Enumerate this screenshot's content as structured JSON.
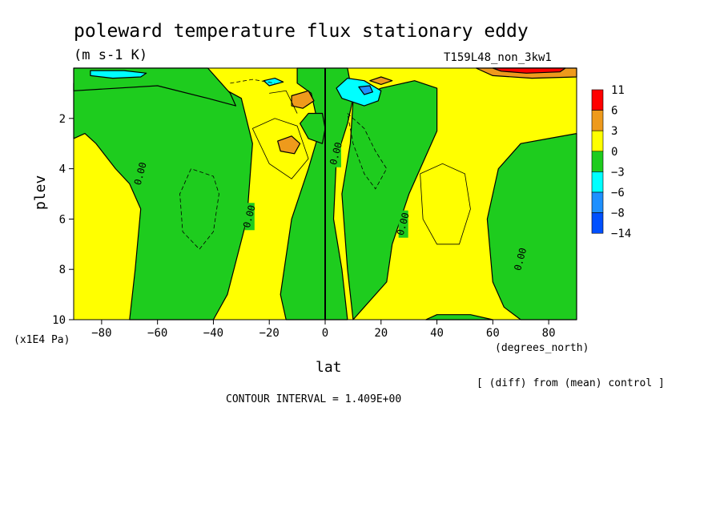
{
  "chart_data": {
    "type": "heatmap",
    "title": "poleward temperature flux stationary eddy",
    "units": "(m s-1 K)",
    "run_label": "T159L48_non_3kw1",
    "subtitle": "[ (diff) from (mean) control ]",
    "contour_interval_text": "CONTOUR INTERVAL = 1.409E+00",
    "xlabel": "lat",
    "x_units": "(degrees_north)",
    "ylabel": "plev",
    "y_units": "(x1E4 Pa)",
    "xlim": [
      -90,
      90
    ],
    "ylim": [
      10,
      0
    ],
    "x_ticks": [
      -80,
      -60,
      -40,
      -20,
      0,
      20,
      40,
      60,
      80
    ],
    "y_ticks": [
      2,
      4,
      6,
      8,
      10
    ],
    "colorbar": {
      "levels": [
        "11",
        "6",
        "3",
        "0",
        "-3",
        "-6",
        "-8",
        "-14"
      ],
      "colors": [
        "#ff0000",
        "#ee9a1c",
        "#ffff00",
        "#1ecc1e",
        "#00ffff",
        "#1e90ff",
        "#0050ff"
      ]
    },
    "contour_labels": [
      {
        "text": "0.00",
        "lat": -66,
        "plev": 4.2
      },
      {
        "text": "0.00",
        "lat": -27,
        "plev": 5.9
      },
      {
        "text": "0.00",
        "lat": 4,
        "plev": 3.4
      },
      {
        "text": "0.00",
        "lat": 28,
        "plev": 6.2
      },
      {
        "text": "0.00",
        "lat": 70,
        "plev": 7.6
      }
    ],
    "regions": [
      {
        "name": "green-sh-band",
        "level": "-3..0",
        "polygon": [
          [
            -90,
            2.8
          ],
          [
            -86,
            2.6
          ],
          [
            -82,
            3.0
          ],
          [
            -75,
            4.0
          ],
          [
            -70,
            4.6
          ],
          [
            -66,
            5.6
          ],
          [
            -68,
            8
          ],
          [
            -70,
            10
          ],
          [
            -40,
            10
          ],
          [
            -35,
            9
          ],
          [
            -28,
            6
          ],
          [
            -26,
            3
          ],
          [
            -30,
            1.2
          ],
          [
            -40,
            0.6
          ],
          [
            -60,
            0.5
          ],
          [
            -90,
            0.6
          ]
        ]
      },
      {
        "name": "green-top-left",
        "level": "-3..0",
        "polygon": [
          [
            -90,
            0
          ],
          [
            -42,
            0
          ],
          [
            -38,
            0.5
          ],
          [
            -34,
            1.0
          ],
          [
            -32,
            1.5
          ],
          [
            -42,
            1.2
          ],
          [
            -60,
            0.7
          ],
          [
            -90,
            0.9
          ]
        ]
      },
      {
        "name": "green-equator",
        "level": "-3..0",
        "polygon": [
          [
            -10,
            0
          ],
          [
            8,
            0
          ],
          [
            10,
            1.2
          ],
          [
            8,
            2.2
          ],
          [
            4,
            3.6
          ],
          [
            3,
            6
          ],
          [
            6,
            8
          ],
          [
            8,
            10
          ],
          [
            -14,
            10
          ],
          [
            -16,
            9
          ],
          [
            -12,
            6
          ],
          [
            -6,
            4
          ],
          [
            -2,
            2.5
          ],
          [
            -5,
            1
          ],
          [
            -10,
            0.6
          ]
        ]
      },
      {
        "name": "green-nh-mid",
        "level": "-3..0",
        "polygon": [
          [
            10,
            1.3
          ],
          [
            20,
            0.8
          ],
          [
            32,
            0.5
          ],
          [
            40,
            0.8
          ],
          [
            40,
            2.5
          ],
          [
            30,
            5
          ],
          [
            24,
            7
          ],
          [
            22,
            8.5
          ],
          [
            14,
            9.5
          ],
          [
            10,
            10
          ],
          [
            8,
            8
          ],
          [
            6,
            5
          ],
          [
            9,
            3
          ]
        ]
      },
      {
        "name": "green-nh-high",
        "level": "-3..0",
        "polygon": [
          [
            58,
            6
          ],
          [
            62,
            4
          ],
          [
            70,
            3.0
          ],
          [
            80,
            2.8
          ],
          [
            90,
            2.6
          ],
          [
            90,
            10
          ],
          [
            70,
            10
          ],
          [
            64,
            9.5
          ],
          [
            60,
            8.5
          ]
        ]
      },
      {
        "name": "green-bottom-mid",
        "level": "-3..0",
        "polygon": [
          [
            36,
            10
          ],
          [
            40,
            9.8
          ],
          [
            52,
            9.8
          ],
          [
            60,
            10
          ]
        ]
      },
      {
        "name": "green-small-blob",
        "level": "-3..0",
        "polygon": [
          [
            -9,
            2.2
          ],
          [
            -6,
            1.8
          ],
          [
            -1,
            1.8
          ],
          [
            0,
            2.4
          ],
          [
            -1,
            3.0
          ],
          [
            -6,
            2.8
          ]
        ]
      },
      {
        "name": "cyan-top-left",
        "level": "-6..-3",
        "polygon": [
          [
            -84,
            0.1
          ],
          [
            -72,
            0.1
          ],
          [
            -64,
            0.2
          ],
          [
            -66,
            0.35
          ],
          [
            -76,
            0.4
          ],
          [
            -84,
            0.3
          ]
        ]
      },
      {
        "name": "cyan-top-center",
        "level": "-6..-3",
        "polygon": [
          [
            -22,
            0.5
          ],
          [
            -18,
            0.4
          ],
          [
            -15,
            0.55
          ],
          [
            -20,
            0.7
          ]
        ]
      },
      {
        "name": "cyan-nh-upper",
        "level": "-6..-3",
        "polygon": [
          [
            4,
            0.8
          ],
          [
            8,
            0.4
          ],
          [
            14,
            0.5
          ],
          [
            20,
            0.9
          ],
          [
            19,
            1.3
          ],
          [
            14,
            1.5
          ],
          [
            6,
            1.2
          ]
        ]
      },
      {
        "name": "blue-nh-upper",
        "level": "-8..-6",
        "polygon": [
          [
            12,
            0.75
          ],
          [
            16,
            0.7
          ],
          [
            17,
            0.95
          ],
          [
            14,
            1.05
          ]
        ]
      },
      {
        "name": "orange-top-right",
        "level": "3..6",
        "polygon": [
          [
            54,
            0
          ],
          [
            90,
            0
          ],
          [
            90,
            0.35
          ],
          [
            74,
            0.4
          ],
          [
            60,
            0.3
          ]
        ]
      },
      {
        "name": "red-top-right",
        "level": "6..11",
        "polygon": [
          [
            60,
            0
          ],
          [
            86,
            0
          ],
          [
            84,
            0.15
          ],
          [
            72,
            0.2
          ],
          [
            63,
            0.12
          ]
        ]
      },
      {
        "name": "orange-center-upper",
        "level": "3..6",
        "polygon": [
          [
            -12,
            1.1
          ],
          [
            -6,
            0.9
          ],
          [
            -4,
            1.3
          ],
          [
            -8,
            1.6
          ],
          [
            -12,
            1.5
          ]
        ]
      },
      {
        "name": "orange-center-mid",
        "level": "3..6",
        "polygon": [
          [
            -17,
            2.9
          ],
          [
            -12,
            2.7
          ],
          [
            -9,
            3.0
          ],
          [
            -11,
            3.4
          ],
          [
            -16,
            3.3
          ]
        ]
      },
      {
        "name": "orange-nh-small",
        "level": "3..6",
        "polygon": [
          [
            16,
            0.5
          ],
          [
            20,
            0.35
          ],
          [
            24,
            0.5
          ],
          [
            20,
            0.65
          ]
        ]
      }
    ]
  }
}
